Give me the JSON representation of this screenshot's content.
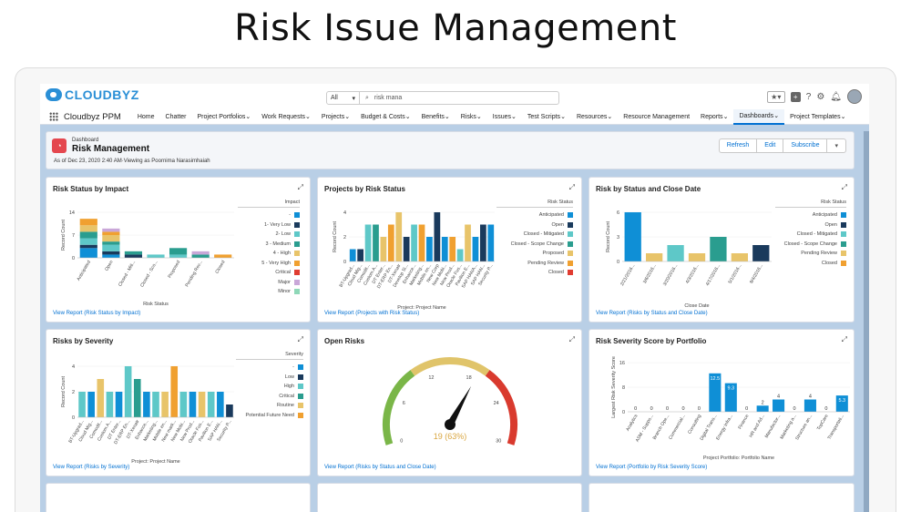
{
  "page_title": "Risk Issue Management",
  "topbar": {
    "logo": "CLOUDBYZ",
    "search_scope": "All",
    "search_value": "risk mana",
    "fav_icon": "star-icon",
    "colors": {
      "brand": "#2a8fd6"
    }
  },
  "nav": {
    "app": "Cloudbyz PPM",
    "items": [
      {
        "label": "Home",
        "dd": false
      },
      {
        "label": "Chatter",
        "dd": false
      },
      {
        "label": "Project Portfolios",
        "dd": true
      },
      {
        "label": "Work Requests",
        "dd": true
      },
      {
        "label": "Projects",
        "dd": true
      },
      {
        "label": "Budget & Costs",
        "dd": true
      },
      {
        "label": "Benefits",
        "dd": true
      },
      {
        "label": "Risks",
        "dd": true
      },
      {
        "label": "Issues",
        "dd": true
      },
      {
        "label": "Test Scripts",
        "dd": true
      },
      {
        "label": "Resources",
        "dd": true
      },
      {
        "label": "Resource Management",
        "dd": false
      },
      {
        "label": "Reports",
        "dd": true
      },
      {
        "label": "Dashboards",
        "dd": true,
        "active": true
      },
      {
        "label": "Project Templates",
        "dd": true
      }
    ]
  },
  "header": {
    "kicker": "Dashboard",
    "title": "Risk Management",
    "subtitle": "As of Dec 23, 2020 2:40 AM·Viewing as Poornima Narasimhaiah",
    "buttons": {
      "refresh": "Refresh",
      "edit": "Edit",
      "subscribe": "Subscribe"
    }
  },
  "colors": {
    "blue": "#0f8fd6",
    "navy": "#1a3a5c",
    "teal": "#5ec8c8",
    "green": "#2a9d8f",
    "yellow": "#e8c46a",
    "orange": "#f0a030",
    "red": "#e03c31",
    "lilac": "#c9a7d8",
    "mint": "#8fd8b8"
  },
  "cards": {
    "impact": {
      "title": "Risk Status by Impact",
      "report": "View Report (Risk Status by Impact)",
      "legend_title": "Impact",
      "legend": [
        "-",
        "1- Very Low",
        "2- Low",
        "3 - Medium",
        "4 - High",
        "5 - Very High",
        "Critical",
        "Major",
        "Minor"
      ]
    },
    "projects": {
      "title": "Projects by Risk Status",
      "report": "View Report (Projects with Risk Status)",
      "legend_title": "Risk Status",
      "legend": [
        "Anticipated",
        "Open",
        "Closed - Mitigated",
        "Closed - Scope Change",
        "Proposed",
        "Pending Review",
        "Closed"
      ]
    },
    "close": {
      "title": "Risk by Status and Close Date",
      "report": "View Report (Risks by Status and Close Date)",
      "legend_title": "Risk Status",
      "legend": [
        "Anticipated",
        "Open",
        "Closed - Mitigated",
        "Closed - Scope Change",
        "Pending Review",
        "Closed"
      ]
    },
    "severity": {
      "title": "Risks by Severity",
      "report": "View Report (Risks by Severity)",
      "legend_title": "Severity",
      "legend": [
        "-",
        "Low",
        "High",
        "Critical",
        "Routine",
        "Potential Future Need"
      ]
    },
    "open": {
      "title": "Open Risks",
      "report": "View Report (Risks by Status and Close Date)"
    },
    "portfolio": {
      "title": "Risk Severity Score by Portfolio",
      "report": "View Report (Portfolio by Risk Severity Score)"
    }
  },
  "chart_data": [
    {
      "type": "bar",
      "title": "Risk Status by Impact",
      "xlabel": "Risk Status",
      "ylabel": "Record Count",
      "ylim": [
        0,
        14
      ],
      "yticks": [
        0,
        7,
        14
      ],
      "categories": [
        "Anticipated",
        "Open",
        "Closed - Miti...",
        "Closed - Sco...",
        "Proposed",
        "Pending Rev...",
        "Closed"
      ],
      "series": [
        {
          "name": "-",
          "values": [
            3,
            1,
            0,
            0,
            0,
            0,
            0
          ]
        },
        {
          "name": "1- Very Low",
          "values": [
            1,
            1,
            1,
            0,
            0,
            0,
            0
          ]
        },
        {
          "name": "2- Low",
          "values": [
            2,
            2,
            0,
            1,
            1,
            0,
            0
          ]
        },
        {
          "name": "3 - Medium",
          "values": [
            2,
            1,
            1,
            0,
            2,
            1,
            0
          ]
        },
        {
          "name": "4 - High",
          "values": [
            2,
            2,
            0,
            0,
            0,
            0,
            0
          ]
        },
        {
          "name": "5 - Very High",
          "values": [
            2,
            1,
            0,
            0,
            0,
            0,
            1
          ]
        },
        {
          "name": "Critical",
          "values": [
            0,
            0,
            0,
            0,
            0,
            0,
            0
          ]
        },
        {
          "name": "Major",
          "values": [
            0,
            1,
            0,
            0,
            0,
            1,
            0
          ]
        },
        {
          "name": "Minor",
          "values": [
            0,
            0,
            0,
            0,
            0,
            0,
            0
          ]
        }
      ]
    },
    {
      "type": "bar",
      "title": "Projects by Risk Status",
      "xlabel": "Project: Project Name",
      "ylabel": "Record Count",
      "ylim": [
        0,
        4
      ],
      "yticks": [
        0,
        2,
        4
      ],
      "categories": [
        "BT-Upgrad...",
        "Cloud Mig...",
        "Comodit...",
        "Custom A...",
        "DT Enter...",
        "DT-ERP En...",
        "DT-Xenatr",
        "Develop Si...",
        "Enhance...",
        "Marketing...",
        "Mobile en...",
        "New Corp",
        "New Mobi...",
        "New Prod...",
        "Oracle Fus...",
        "Pavilion E...",
        "SAP HANA...",
        "SAP HAN...",
        "Security P..."
      ],
      "values": [
        1,
        1,
        3,
        3,
        2,
        3,
        4,
        2,
        3,
        3,
        2,
        4,
        2,
        2,
        1,
        3,
        2,
        3,
        3
      ]
    },
    {
      "type": "bar",
      "title": "Risk by Status and Close Date",
      "xlabel": "Close Date",
      "ylabel": "Record Count",
      "ylim": [
        0,
        6
      ],
      "yticks": [
        0,
        3,
        6
      ],
      "categories": [
        "2/21/2016...",
        "3/6/2016...",
        "3/20/2016...",
        "4/3/2016...",
        "4/17/2016...",
        "5/1/2016...",
        "9/4/2016..."
      ],
      "values": [
        6,
        1,
        2,
        1,
        3,
        1,
        2
      ]
    },
    {
      "type": "bar",
      "title": "Risks by Severity",
      "xlabel": "Project: Project Name",
      "ylabel": "Record Count",
      "ylim": [
        0,
        4
      ],
      "yticks": [
        0,
        2,
        4
      ],
      "categories": [
        "BT-Upgrad...",
        "Cloud Mig...",
        "Comodit...",
        "Custom A...",
        "DT Enter...",
        "DT-ERP En...",
        "DT-Xenatr",
        "Enhance...",
        "Marketing...",
        "Mobile en...",
        "New mark...",
        "New Mobi...",
        "New Prod...",
        "Oracle Fus...",
        "Pavilion E...",
        "SAP HAN...",
        "Security P..."
      ],
      "values": [
        2,
        2,
        3,
        2,
        2,
        4,
        3,
        2,
        2,
        2,
        4,
        2,
        2,
        2,
        2,
        2,
        1
      ]
    },
    {
      "type": "gauge",
      "title": "Open Risks",
      "value": 19,
      "percent": 63,
      "label": "19 (63%)",
      "min": 0,
      "max": 30,
      "ticks": [
        0,
        6,
        12,
        18,
        24,
        30
      ]
    },
    {
      "type": "bar",
      "title": "Risk Severity Score by Portfolio",
      "xlabel": "Project Portfolio: Portfolio Name",
      "ylabel": "Largest Risk Severity Score",
      "ylim": [
        0,
        16
      ],
      "yticks": [
        0,
        8,
        16
      ],
      "categories": [
        "Analytics",
        "ASM - Suppo...",
        "Branch Ope...",
        "Commercial...",
        "Consulting",
        "Digital Trans...",
        "Energy Infra...",
        "Finance",
        "HR and Ad...",
        "Manufactur...",
        "Marketing a...",
        "Structure an...",
        "TopCare",
        "Transportati..."
      ],
      "values": [
        0,
        0,
        0,
        0,
        0,
        12.5,
        9.3,
        0,
        2,
        4,
        0,
        4,
        0,
        5.3
      ],
      "data_labels": [
        "0",
        "0",
        "0",
        "0",
        "0",
        "12.5",
        "9.3",
        "0",
        "2",
        "4",
        "0",
        "4",
        "0",
        "5.3"
      ]
    }
  ]
}
